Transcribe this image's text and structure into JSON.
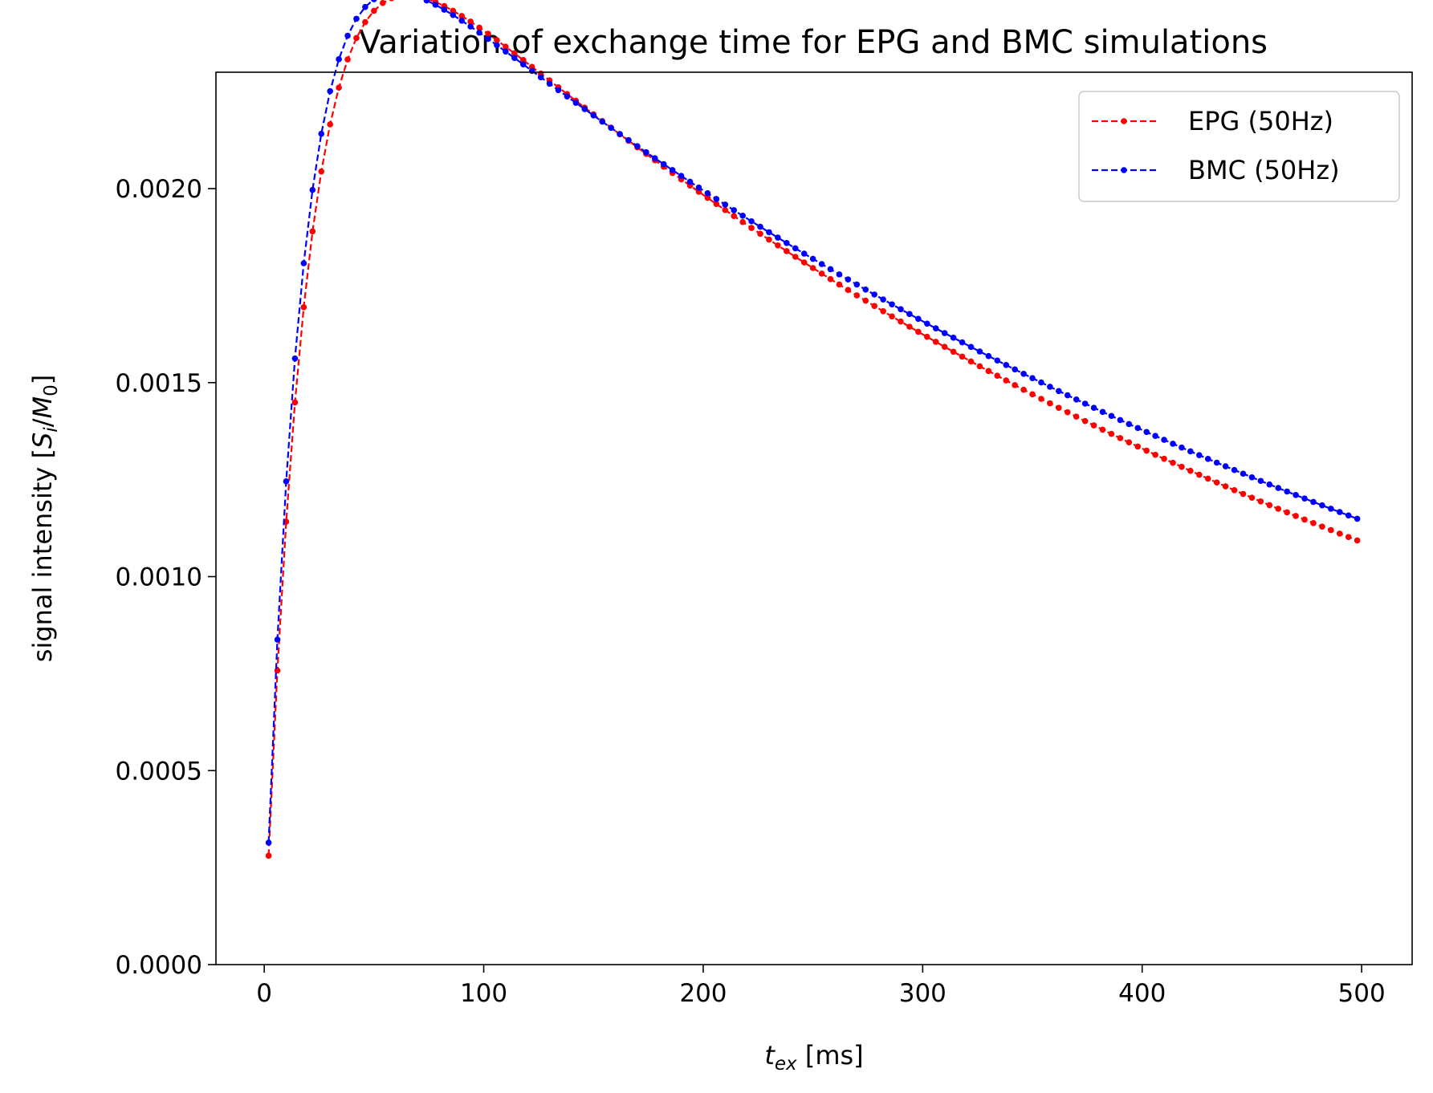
{
  "chart_data": {
    "type": "line",
    "title": "Variation of exchange time for EPG and BMC simulations",
    "xlabel": {
      "base": "t",
      "sub": "ex",
      "rest": " [ms]"
    },
    "ylabel": {
      "prefix": "signal intensity [",
      "S": "S",
      "i": "i",
      "slash": "/",
      "M": "M",
      "zero": "0",
      "suffix": "]"
    },
    "xlim": [
      -22,
      523
    ],
    "ylim": [
      0,
      0.0023
    ],
    "xticks": [
      0,
      100,
      200,
      300,
      400,
      500
    ],
    "xtick_labels": [
      "0",
      "100",
      "200",
      "300",
      "400",
      "500"
    ],
    "yticks": [
      0,
      0.0005,
      0.001,
      0.0015,
      0.002
    ],
    "ytick_labels": [
      "0.0000",
      "0.0005",
      "0.0010",
      "0.0015",
      "0.0020"
    ],
    "grid": false,
    "legend_position": "top-right",
    "x": {
      "start": 2,
      "step": 4,
      "count": 125
    },
    "series": [
      {
        "name": "EPG (50Hz)",
        "color": "#ff0000",
        "model": {
          "amp": 0.00296,
          "t_decay": 500,
          "t_rise": 20
        }
      },
      {
        "name": "BMC (50Hz)",
        "color": "#0000ff",
        "model": {
          "amp": 0.00289,
          "t_decay": 540,
          "t_rise": 17.3
        }
      }
    ]
  }
}
